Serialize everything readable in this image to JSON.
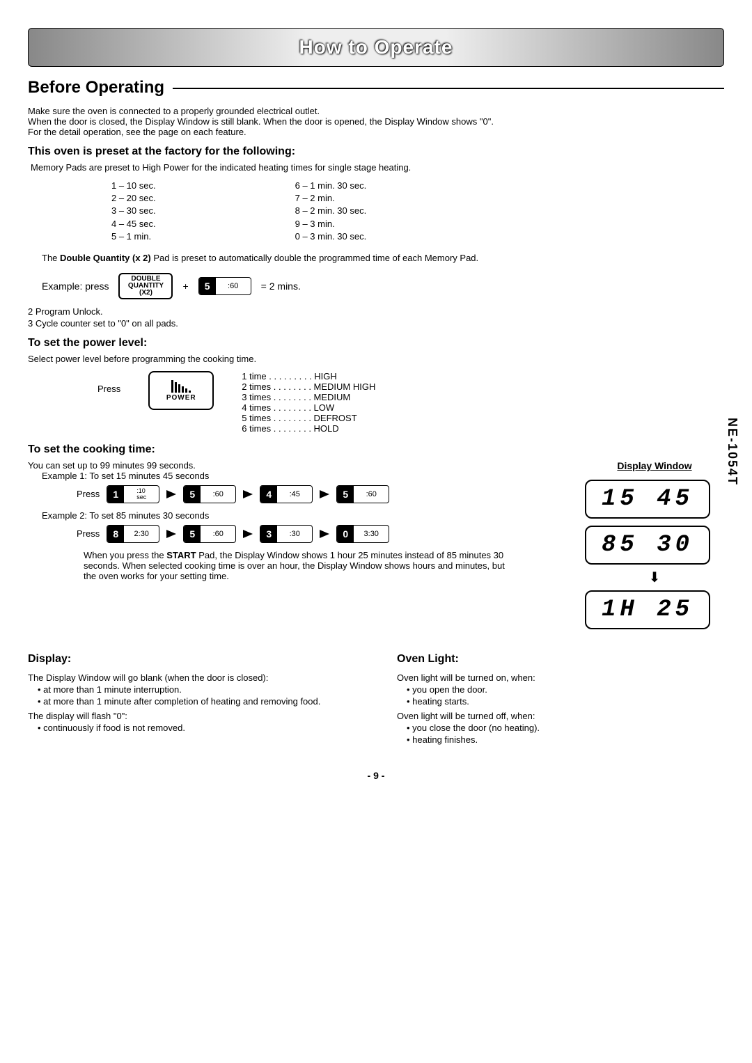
{
  "banner": {
    "title": "How to Operate"
  },
  "sideLabel": "NE-1054T",
  "before": {
    "heading": "Before Operating",
    "intro": [
      "Make sure the oven is connected to a properly grounded electrical outlet.",
      "When the door is closed, the Display Window is still blank. When the door is opened, the Display Window shows \"0\".",
      "For the detail operation, see the page on each feature."
    ]
  },
  "factory": {
    "heading": "This oven is preset at the factory for the following:",
    "note": "Memory Pads are preset to High Power for the indicated heating times for single stage heating.",
    "left": [
      "1 – 10 sec.",
      "2 – 20 sec.",
      "3 – 30 sec.",
      "4 – 45 sec.",
      "5 –  1 min."
    ],
    "right": [
      "6 – 1 min. 30 sec.",
      "7 – 2 min.",
      "8 – 2 min. 30 sec.",
      "9 – 3 min.",
      "0 – 3 min. 30 sec."
    ],
    "dqLinePre": "The ",
    "dqBold": "Double Quantity (x 2)",
    "dqLinePost": " Pad is preset to automatically double the programmed time of each Memory Pad.",
    "example": {
      "label": "Example:  press",
      "dqPad": {
        "l1": "DOUBLE",
        "l2": "QUANTITY",
        "l3": "(X2)"
      },
      "plus": "+",
      "pad": {
        "num": "5",
        "lbl": ":60"
      },
      "result": "= 2 mins."
    },
    "list2": "2  Program Unlock.",
    "list3": "3  Cycle counter set to \"0\" on all pads."
  },
  "power": {
    "heading": "To set the power level:",
    "note": "Select power level before programming the cooking time.",
    "press": "Press",
    "padLabel": "POWER",
    "levels": [
      "1 time . . . . . . . . . HIGH",
      "2 times . . . . . . . . MEDIUM HIGH",
      "3 times . . . . . . . . MEDIUM",
      "4 times . . . . . . . . LOW",
      "5 times . . . . . . . . DEFROST",
      "6 times . . . . . . . . HOLD"
    ]
  },
  "cook": {
    "heading": "To set the cooking time:",
    "dwTitle": "Display Window",
    "intro1": "You can set up to 99 minutes 99 seconds.",
    "ex1label": "Example 1: To set 15 minutes 45 seconds",
    "ex1press": "Press",
    "ex1seq": [
      {
        "num": "1",
        "lbl": ":10\nsec"
      },
      {
        "num": "5",
        "lbl": ":60"
      },
      {
        "num": "4",
        "lbl": ":45"
      },
      {
        "num": "5",
        "lbl": ":60"
      }
    ],
    "ex1disp": "15 45",
    "ex2label": "Example 2: To set 85 minutes 30 seconds",
    "ex2press": "Press",
    "ex2seq": [
      {
        "num": "8",
        "lbl": "2:30"
      },
      {
        "num": "5",
        "lbl": ":60"
      },
      {
        "num": "3",
        "lbl": ":30"
      },
      {
        "num": "0",
        "lbl": "3:30"
      }
    ],
    "ex2disp": "85 30",
    "ex3disp": "1H 25",
    "notePre": "When you press the ",
    "noteBold": "START",
    "notePost": " Pad, the Display Window shows 1 hour 25 minutes instead of 85 minutes 30 seconds. When selected cooking time is over an hour, the Display Window shows hours and minutes, but the oven works for your setting time."
  },
  "display": {
    "heading": "Display:",
    "p1": "The Display Window will go blank (when the door is closed):",
    "b1": "at more than 1 minute interruption.",
    "b2": "at more than 1 minute after completion of heating and removing food.",
    "p2": "The display will flash \"0\":",
    "b3": "continuously if food is not removed."
  },
  "light": {
    "heading": "Oven Light:",
    "p1": "Oven light will be turned on, when:",
    "b1": "you open the door.",
    "b2": "heating starts.",
    "p2": "Oven light will be turned off, when:",
    "b3": "you close the door (no heating).",
    "b4": "heating finishes."
  },
  "pageNum": "- 9 -"
}
